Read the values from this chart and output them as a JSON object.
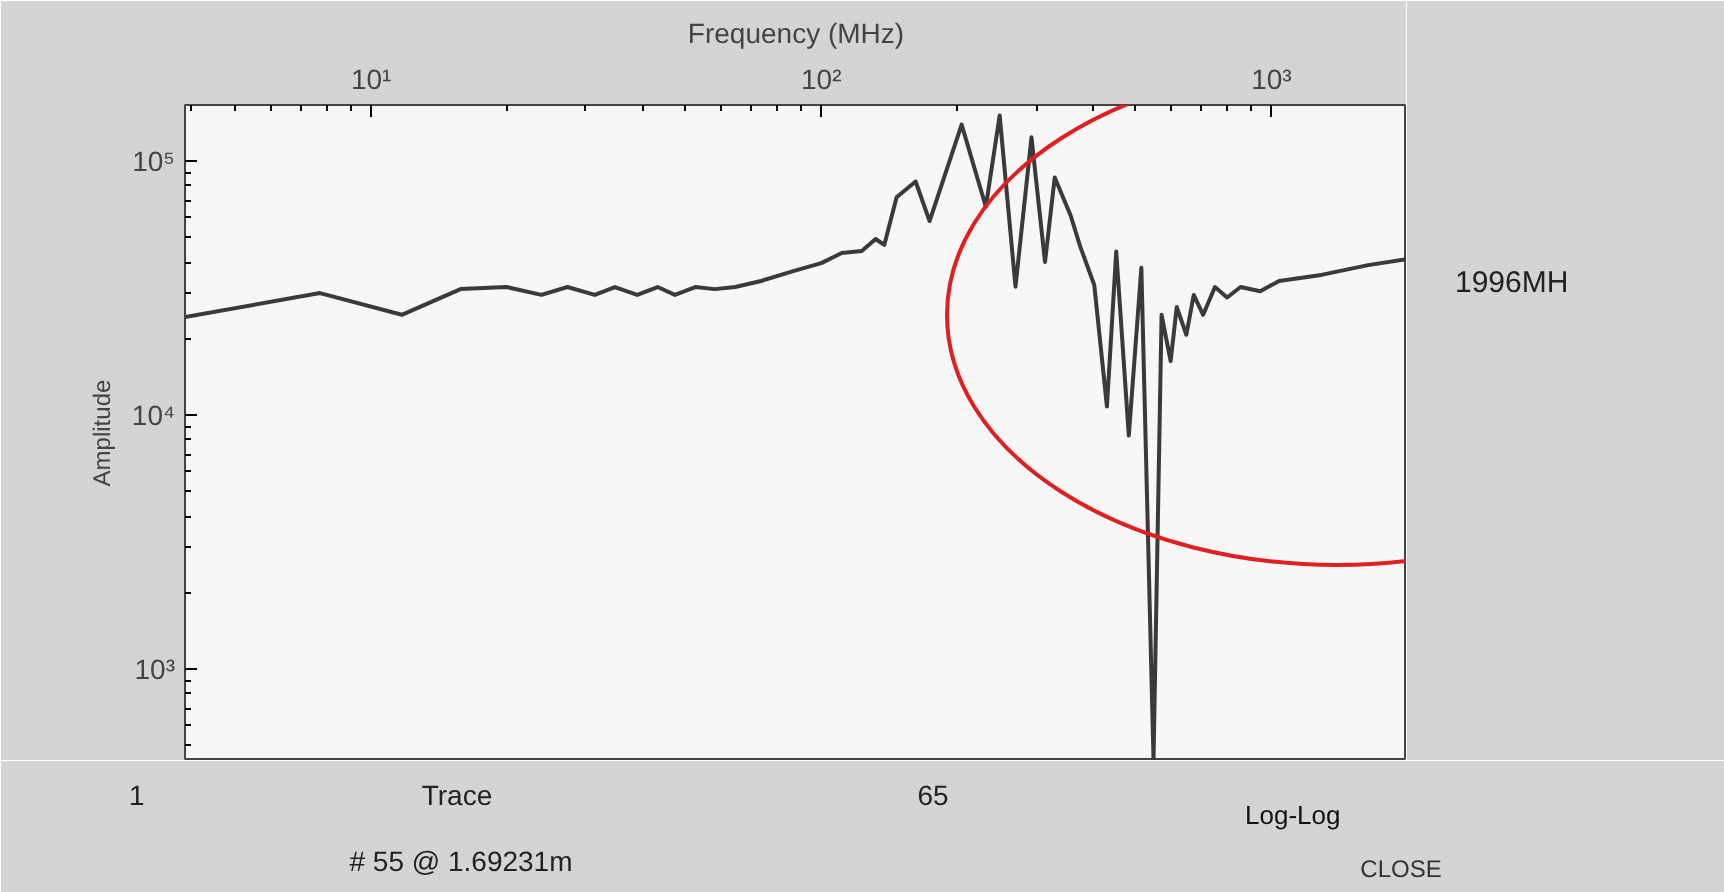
{
  "chart_data": {
    "type": "line",
    "xlabel": "Frequency (MHz)",
    "ylabel": "Amplitude",
    "log": "xy",
    "grid": false,
    "tick_labels": "xy",
    "line_style": "solid",
    "marker": "none",
    "xlim": [
      3.86,
      2000
    ],
    "ylim": [
      435,
      166000
    ],
    "xticks": [
      {
        "value": 10,
        "label": "10¹"
      },
      {
        "value": 100,
        "label": "10²"
      },
      {
        "value": 1000,
        "label": "10³"
      }
    ],
    "yticks": [
      {
        "value": 1000,
        "label": "10³"
      },
      {
        "value": 10000,
        "label": "10⁴"
      },
      {
        "value": 100000,
        "label": "10⁵"
      }
    ],
    "x": [
      3.86,
      7.7,
      11.7,
      15.8,
      20,
      23.9,
      27.3,
      31.4,
      34.8,
      39,
      43.3,
      47.3,
      52.5,
      58,
      64.4,
      73.5,
      87,
      100,
      111,
      123,
      132,
      138,
      147,
      162,
      174,
      205,
      232,
      249,
      270,
      293,
      314,
      330,
      358,
      376,
      404,
      431,
      452,
      482,
      514,
      547,
      570,
      597,
      616,
      647,
      672,
      705,
      749,
      797,
      854,
      944,
      1040,
      1290,
      1640,
      2000
    ],
    "series": [
      {
        "color": "#3a3a3a",
        "values": [
          24300,
          30200,
          24800,
          31300,
          31900,
          29700,
          31900,
          29700,
          31900,
          29700,
          31900,
          29700,
          31900,
          31300,
          31900,
          33700,
          36900,
          39600,
          43400,
          44200,
          49300,
          46700,
          72000,
          83000,
          58000,
          139000,
          66000,
          151000,
          32000,
          124000,
          40000,
          86000,
          61000,
          46000,
          32500,
          10800,
          44000,
          8300,
          38000,
          440,
          24800,
          16300,
          26600,
          20700,
          29700,
          24800,
          31900,
          29000,
          31900,
          30700,
          33700,
          35600,
          38900,
          41100
        ]
      }
    ],
    "annotations": [
      "1996MH",
      "1",
      "Trace",
      "65",
      "# 55 @ 1.69231m",
      "Log-Log",
      "CLOSE"
    ]
  }
}
